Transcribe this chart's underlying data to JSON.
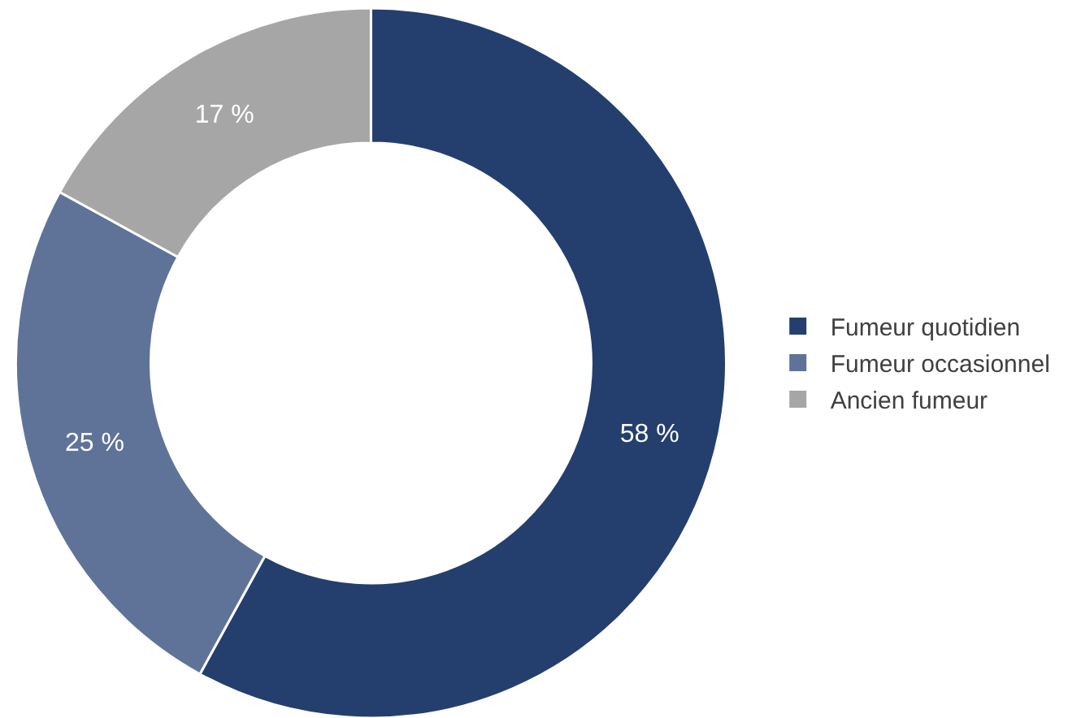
{
  "chart_data": {
    "type": "donut",
    "categories": [
      "Fumeur quotidien",
      "Fumeur occasionnel",
      "Ancien fumeur"
    ],
    "values": [
      58,
      25,
      17
    ],
    "colors": [
      "#243f6e",
      "#5f7399",
      "#a6a6a6"
    ],
    "value_labels": [
      "58 %",
      "25 %",
      "17 %"
    ],
    "legend": "right"
  }
}
